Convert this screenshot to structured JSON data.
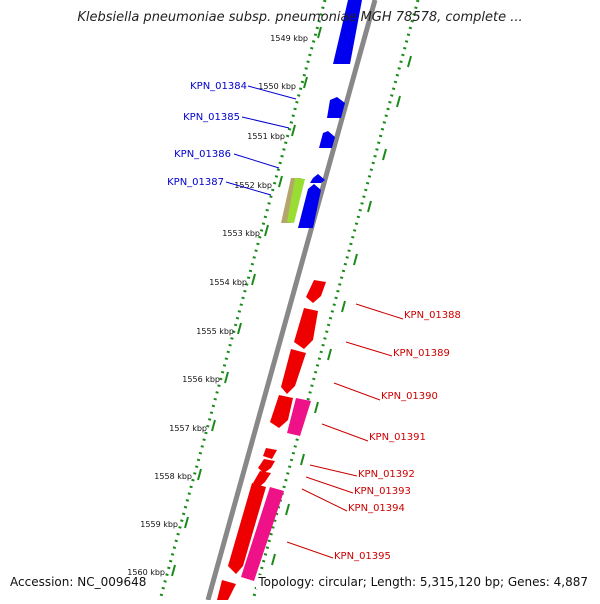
{
  "title": "Klebsiella pneumoniae subsp. pneumoniae MGH 78578, complete ...",
  "footer": {
    "accession": "Accession: NC_009648",
    "topology": "Topology: circular; Length: 5,315,120 bp; Genes: 4,887"
  },
  "ticks": [
    "1549 kbp",
    "1550 kbp",
    "1551 kbp",
    "1552 kbp",
    "1553 kbp",
    "1554 kbp",
    "1555 kbp",
    "1556 kbp",
    "1557 kbp",
    "1558 kbp",
    "1559 kbp",
    "1560 kbp"
  ],
  "genes_left": [
    "KPN_01384",
    "KPN_01385",
    "KPN_01386",
    "KPN_01387"
  ],
  "genes_right": [
    "KPN_01388",
    "KPN_01389",
    "KPN_01390",
    "KPN_01391",
    "KPN_01392",
    "KPN_01393",
    "KPN_01394",
    "KPN_01395"
  ],
  "colors": {
    "forward_gene": "#0000ee",
    "reverse_gene": "#ee0000",
    "pseudo_gene": "#ee1188",
    "rna_gene_green": "#99dd33",
    "rna_gene_olive": "#b4a66a",
    "backbone": "#888888",
    "tick": "#1a8a1a"
  }
}
